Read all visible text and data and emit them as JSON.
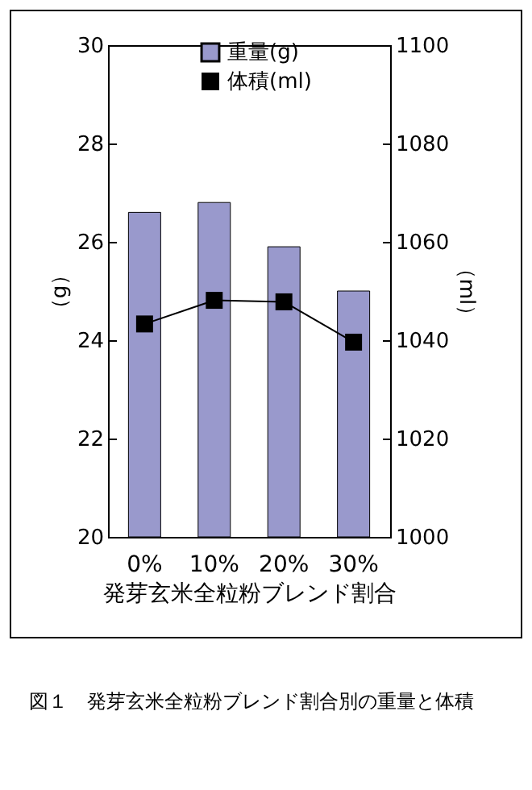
{
  "chart_data": {
    "type": "bar",
    "xlabel": "発芽玄米全粒粉ブレンド割合",
    "ylabel": "（g）",
    "y2label": "（ml）",
    "categories": [
      "0%",
      "10%",
      "20%",
      "30%"
    ],
    "series": [
      {
        "name": "重量(g)",
        "color": "#9999cc",
        "values": [
          26.6,
          26.8,
          25.9,
          25.0
        ]
      },
      {
        "name": "体積(ml)",
        "type": "line",
        "axis": "y2",
        "color": "#000000",
        "values": [
          1043.3,
          1048.1,
          1047.8,
          1039.6
        ]
      }
    ],
    "ylim": [
      20,
      30
    ],
    "yticks": [
      20,
      22,
      24,
      26,
      28,
      30
    ],
    "y2lim": [
      1000,
      1100
    ],
    "y2ticks": [
      1000,
      1020,
      1040,
      1060,
      1080,
      1100
    ],
    "marker": "square",
    "grid": false,
    "legend": "top",
    "annotations": [
      "図１　発芽玄米全粒粉ブレンド割合別の重量と体積"
    ]
  }
}
